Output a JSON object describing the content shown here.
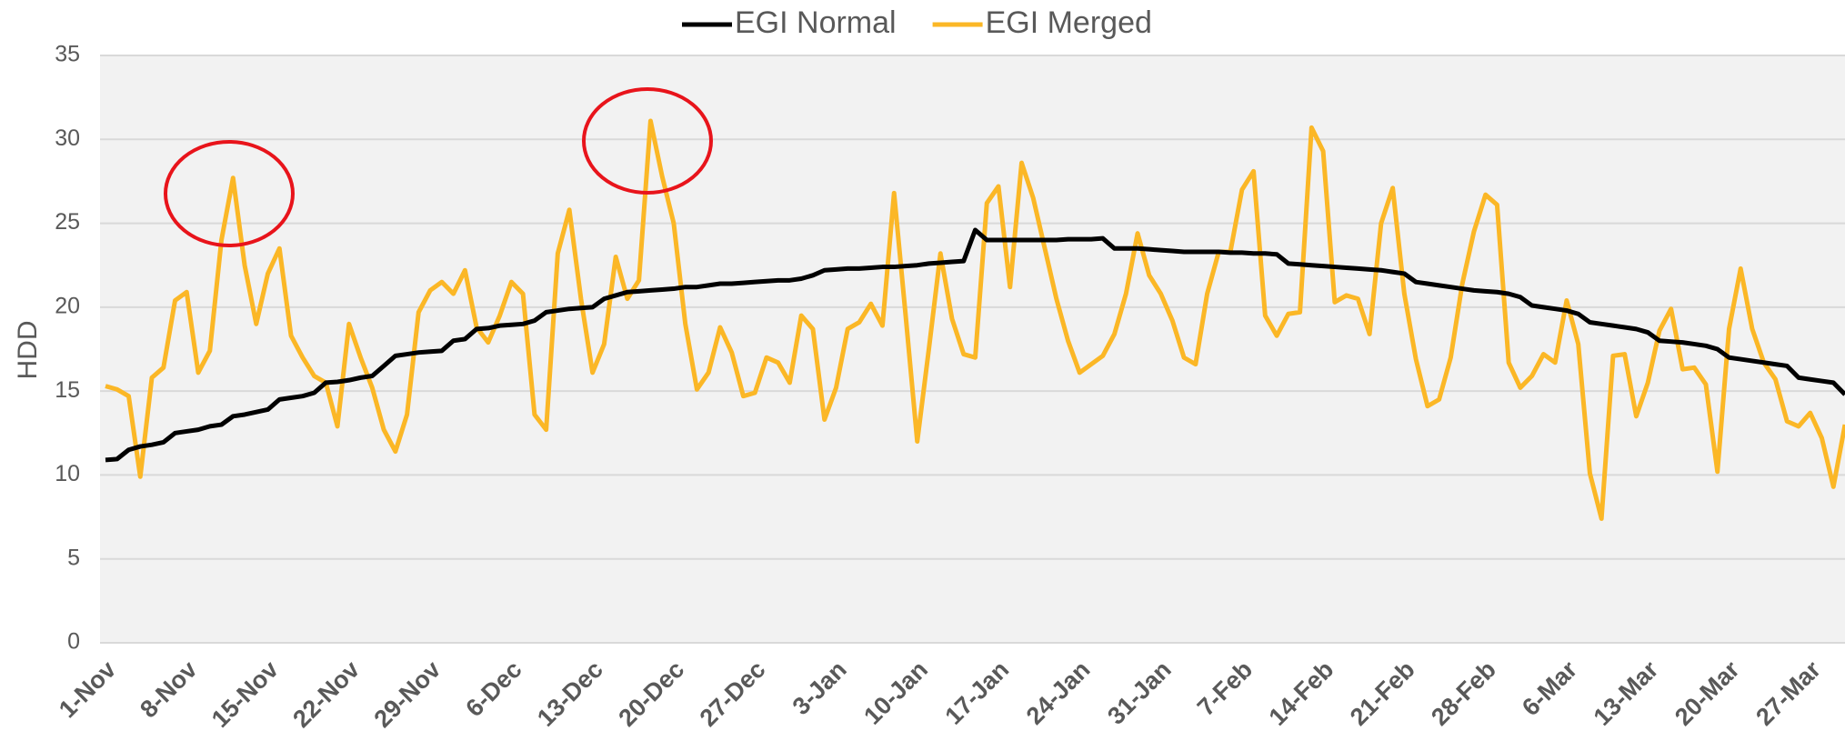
{
  "chart_data": {
    "type": "line",
    "y_label": "HDD",
    "legend": "top",
    "grid": true,
    "ylim": [
      0,
      35
    ],
    "yticks": [
      0,
      5,
      10,
      15,
      20,
      25,
      30,
      35
    ],
    "categories": [
      "1-Nov",
      null,
      null,
      null,
      null,
      null,
      null,
      "8-Nov",
      null,
      null,
      null,
      null,
      null,
      null,
      "15-Nov",
      null,
      null,
      null,
      null,
      null,
      null,
      "22-Nov",
      null,
      null,
      null,
      null,
      null,
      null,
      "29-Nov",
      null,
      null,
      null,
      null,
      null,
      null,
      "6-Dec",
      null,
      null,
      null,
      null,
      null,
      null,
      "13-Dec",
      null,
      null,
      null,
      null,
      null,
      null,
      "20-Dec",
      null,
      null,
      null,
      null,
      null,
      null,
      "27-Dec",
      null,
      null,
      null,
      null,
      null,
      null,
      "3-Jan",
      null,
      null,
      null,
      null,
      null,
      null,
      "10-Jan",
      null,
      null,
      null,
      null,
      null,
      null,
      "17-Jan",
      null,
      null,
      null,
      null,
      null,
      null,
      "24-Jan",
      null,
      null,
      null,
      null,
      null,
      null,
      "31-Jan",
      null,
      null,
      null,
      null,
      null,
      null,
      "7-Feb",
      null,
      null,
      null,
      null,
      null,
      null,
      "14-Feb",
      null,
      null,
      null,
      null,
      null,
      null,
      "21-Feb",
      null,
      null,
      null,
      null,
      null,
      null,
      "28-Feb",
      null,
      null,
      null,
      null,
      null,
      null,
      "6-Mar",
      null,
      null,
      null,
      null,
      null,
      null,
      "13-Mar",
      null,
      null,
      null,
      null,
      null,
      null,
      "20-Mar",
      null,
      null,
      null,
      null,
      null,
      null,
      "27-Mar",
      null,
      null,
      null
    ],
    "series": [
      {
        "name": "EGI Normal",
        "color": "#000000",
        "values": [
          10.9,
          10.95,
          11.5,
          11.7,
          11.8,
          11.95,
          12.5,
          12.6,
          12.7,
          12.9,
          13.0,
          13.5,
          13.6,
          13.75,
          13.9,
          14.5,
          14.6,
          14.7,
          14.9,
          15.5,
          15.55,
          15.65,
          15.8,
          15.9,
          16.5,
          17.1,
          17.2,
          17.3,
          17.35,
          17.4,
          18.0,
          18.1,
          18.7,
          18.75,
          18.9,
          18.95,
          19.0,
          19.2,
          19.7,
          19.8,
          19.9,
          19.95,
          20.0,
          20.5,
          20.7,
          20.9,
          20.95,
          21.0,
          21.05,
          21.1,
          21.2,
          21.2,
          21.3,
          21.4,
          21.4,
          21.45,
          21.5,
          21.55,
          21.6,
          21.6,
          21.7,
          21.9,
          22.2,
          22.25,
          22.3,
          22.3,
          22.35,
          22.4,
          22.4,
          22.45,
          22.5,
          22.6,
          22.65,
          22.7,
          22.75,
          24.6,
          24.0,
          24.0,
          24.0,
          24.0,
          24.0,
          24.0,
          24.0,
          24.05,
          24.05,
          24.05,
          24.1,
          23.5,
          23.5,
          23.5,
          23.45,
          23.4,
          23.35,
          23.3,
          23.3,
          23.3,
          23.3,
          23.25,
          23.25,
          23.2,
          23.2,
          23.15,
          22.6,
          22.55,
          22.5,
          22.45,
          22.4,
          22.35,
          22.3,
          22.25,
          22.2,
          22.1,
          22.0,
          21.5,
          21.4,
          21.3,
          21.2,
          21.1,
          21.0,
          20.95,
          20.9,
          20.8,
          20.6,
          20.1,
          20.0,
          19.9,
          19.8,
          19.6,
          19.1,
          19.0,
          18.9,
          18.8,
          18.7,
          18.5,
          18.0,
          17.95,
          17.9,
          17.8,
          17.7,
          17.5,
          17.0,
          16.9,
          16.8,
          16.7,
          16.6,
          16.5,
          15.8,
          15.7,
          15.6,
          15.5,
          14.8
        ]
      },
      {
        "name": "EGI Merged",
        "color": "#FBB726",
        "values": [
          15.3,
          15.1,
          14.7,
          9.9,
          15.8,
          16.4,
          20.4,
          20.9,
          16.1,
          17.4,
          24,
          27.7,
          22.5,
          19,
          22,
          23.5,
          18.3,
          17,
          15.9,
          15.5,
          12.9,
          19,
          17,
          15.2,
          12.7,
          11.4,
          13.6,
          19.7,
          21,
          21.5,
          20.8,
          22.2,
          18.8,
          17.9,
          19.5,
          21.5,
          20.8,
          13.6,
          12.7,
          23.2,
          25.8,
          20.5,
          16.1,
          17.8,
          23,
          20.5,
          21.6,
          31.1,
          27.8,
          25,
          19,
          15.1,
          16.1,
          18.8,
          17.3,
          14.7,
          14.9,
          17,
          16.7,
          15.5,
          19.5,
          18.7,
          13.3,
          15.2,
          18.7,
          19.1,
          20.2,
          18.9,
          26.8,
          19.5,
          12,
          17.5,
          23.2,
          19.3,
          17.2,
          17,
          26.2,
          27.2,
          21.2,
          28.6,
          26.5,
          23.5,
          20.5,
          18,
          16.1,
          16.6,
          17.1,
          18.4,
          20.8,
          24.4,
          21.9,
          20.8,
          19.2,
          17,
          16.6,
          20.8,
          23.3,
          23.3,
          27,
          28.1,
          19.5,
          18.3,
          19.6,
          19.7,
          30.7,
          29.3,
          20.3,
          20.7,
          20.5,
          18.4,
          25,
          27.1,
          20.8,
          16.9,
          14.1,
          14.5,
          17,
          21.4,
          24.5,
          26.7,
          26.1,
          16.7,
          15.2,
          15.9,
          17.2,
          16.7,
          20.4,
          17.8,
          10.1,
          7.4,
          17.1,
          17.2,
          13.5,
          15.5,
          18.6,
          19.9,
          16.3,
          16.4,
          15.4,
          10.2,
          18.7,
          22.3,
          18.7,
          16.7,
          15.7,
          13.2,
          12.9,
          13.7,
          12.2,
          9.3,
          13
        ]
      }
    ]
  }
}
